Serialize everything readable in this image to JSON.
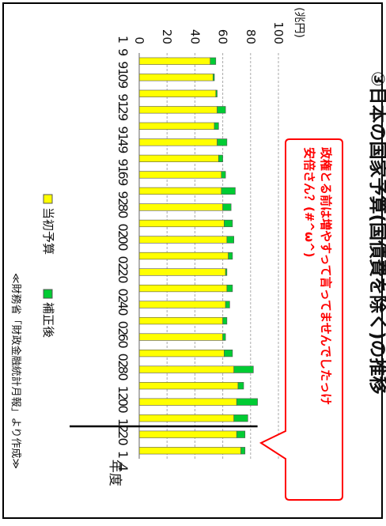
{
  "title": "③日本の国家予算(国債費を除く)の推移",
  "source": "≪財務省「財政金融統計月報」より作成≫",
  "callout": {
    "line1": "政権とる前は増やすって言ってませんでしたっけ",
    "line2": "安倍さん？(#^ω^)"
  },
  "colors": {
    "initial": "#ffff00",
    "supplementary": "#00cc33",
    "callout": "#ff0000",
    "bar_stroke": "#555555",
    "grid": "#aaaaaa"
  },
  "chart_data": {
    "type": "bar",
    "orientation": "horizontal-stacked",
    "unit": "(兆円)",
    "category_axis_label": "年度",
    "categories": [
      "1990",
      "1991",
      "1992",
      "1993",
      "1994",
      "1995",
      "1996",
      "1997",
      "1998",
      "1999",
      "2000",
      "2001",
      "2002",
      "2003",
      "2004",
      "2005",
      "2006",
      "2007",
      "2008",
      "2009",
      "2010",
      "2011",
      "2012",
      "2013",
      "2014"
    ],
    "tick_labels": [
      "1990",
      "1992",
      "1994",
      "1996",
      "1998",
      "2000",
      "2002",
      "2004",
      "2006",
      "2008",
      "2010",
      "2012",
      "2014"
    ],
    "xlim": [
      0,
      100
    ],
    "xticks": [
      0,
      20,
      40,
      60,
      80,
      100
    ],
    "series": [
      {
        "name": "当初予算",
        "values": [
          51,
          53,
          55,
          56,
          54,
          56,
          57,
          59,
          59,
          60,
          61,
          63,
          64,
          62,
          63,
          62,
          60,
          60,
          61,
          68,
          71,
          70,
          68,
          70,
          73
        ]
      },
      {
        "name": "補正後",
        "values": [
          4,
          1,
          1,
          6,
          3,
          7,
          3,
          3,
          10,
          6,
          6,
          5,
          3,
          1,
          4,
          3,
          3,
          2,
          6,
          14,
          4,
          15,
          10,
          6,
          3
        ]
      }
    ],
    "marker_between": [
      "2012",
      "2013"
    ],
    "grid": true
  }
}
